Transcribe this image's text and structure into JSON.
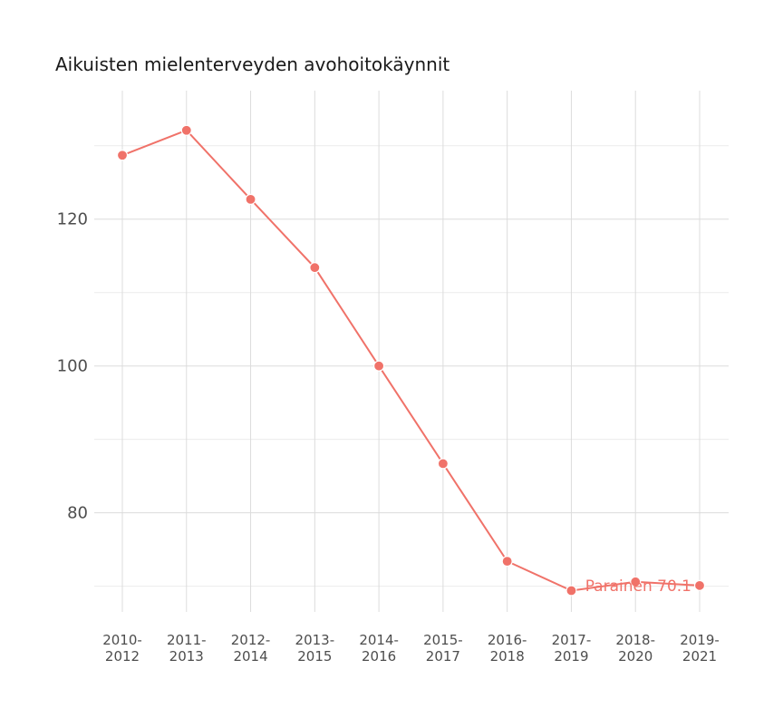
{
  "chart_data": {
    "type": "line",
    "title": "Aikuisten mielenterveyden avohoitokäynnit",
    "xlabel": "",
    "ylabel": "",
    "categories": [
      [
        "2010-",
        "2012"
      ],
      [
        "2011-",
        "2013"
      ],
      [
        "2012-",
        "2014"
      ],
      [
        "2013-",
        "2015"
      ],
      [
        "2014-",
        "2016"
      ],
      [
        "2015-",
        "2017"
      ],
      [
        "2016-",
        "2018"
      ],
      [
        "2017-",
        "2019"
      ],
      [
        "2018-",
        "2020"
      ],
      [
        "2019-",
        "2021"
      ]
    ],
    "yticks": [
      80,
      100,
      120
    ],
    "ylim": [
      66.5,
      137.5
    ],
    "grid": true,
    "series": [
      {
        "name": "Parainen",
        "values": [
          128.7,
          132.1,
          122.7,
          113.4,
          100.0,
          86.7,
          73.4,
          69.4,
          70.6,
          70.1
        ]
      }
    ],
    "end_label": "Parainen 70.1",
    "color": "#f07269"
  }
}
